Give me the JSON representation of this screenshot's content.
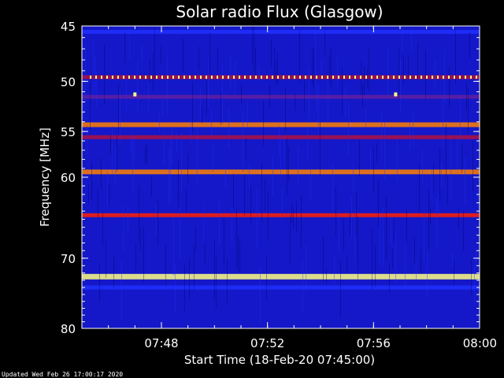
{
  "chart_data": {
    "type": "heatmap",
    "title": "Solar radio Flux (Glasgow)",
    "xlabel": "Start Time (18-Feb-20 07:45:00)",
    "ylabel": "Frequency [MHz]",
    "x_ticks": [
      "07:48",
      "07:52",
      "07:56",
      "08:00"
    ],
    "y_ticks": [
      "45",
      "50",
      "55",
      "60",
      "70",
      "80"
    ],
    "x_range": [
      "07:45:00",
      "08:00:00"
    ],
    "y_range": [
      45,
      80
    ],
    "y_scale": "log",
    "colormap": [
      "#00008a",
      "#1418c8",
      "#2030ff",
      "#6020a0",
      "#b01040",
      "#ff2000",
      "#ff8000",
      "#ffff80"
    ],
    "background_level": 0.12,
    "bands": [
      {
        "freq_mhz": 45.5,
        "level": 0.35
      },
      {
        "freq_mhz": 49.6,
        "level": 0.55
      },
      {
        "freq_mhz": 51.5,
        "level": 0.45
      },
      {
        "freq_mhz": 54.3,
        "level": 0.82
      },
      {
        "freq_mhz": 55.6,
        "level": 0.55
      },
      {
        "freq_mhz": 59.4,
        "level": 0.9
      },
      {
        "freq_mhz": 64.5,
        "level": 0.7
      },
      {
        "freq_mhz": 72.5,
        "level": 1.0
      },
      {
        "freq_mhz": 74.0,
        "level": 0.3
      }
    ],
    "bursts": [
      {
        "time": "07:47:00",
        "freq_mhz": 51.3
      },
      {
        "time": "07:56:50",
        "freq_mhz": 51.3
      }
    ]
  },
  "footer": {
    "updated": "Updated Wed Feb 26 17:00:17 2020"
  }
}
